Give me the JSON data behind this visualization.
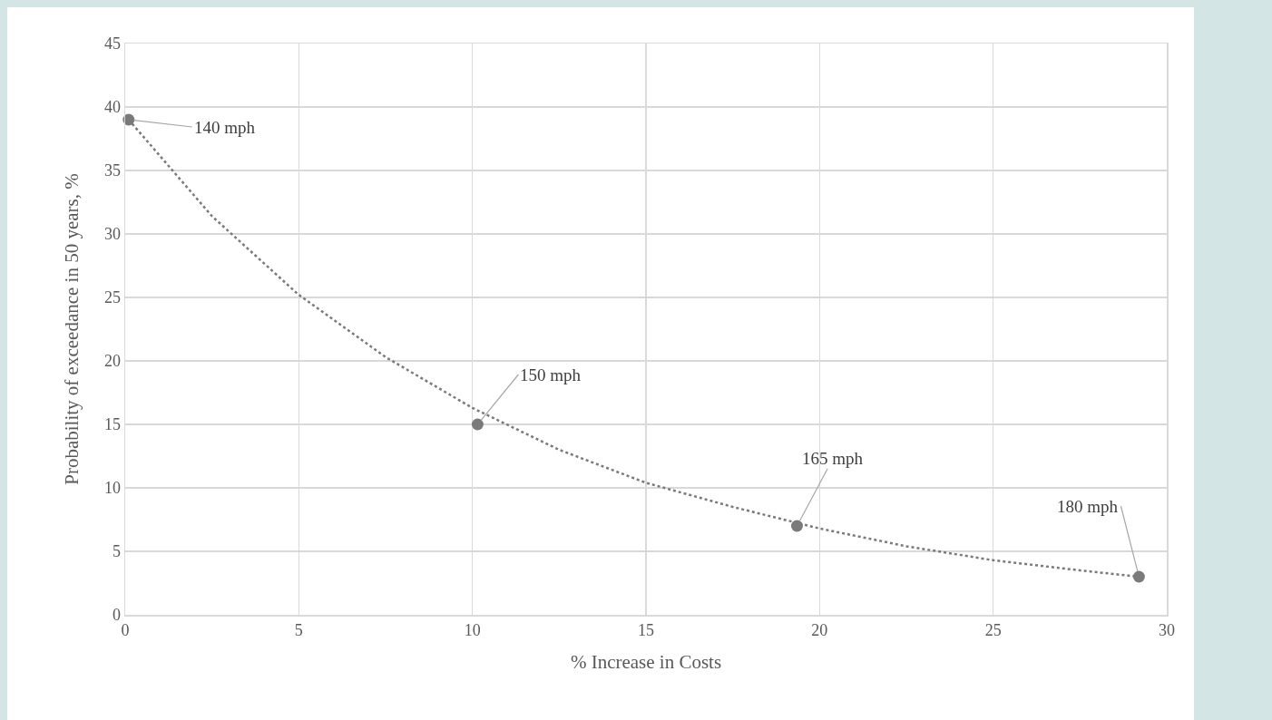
{
  "chart_data": {
    "type": "scatter",
    "xlabel": "% Increase in Costs",
    "ylabel": "Probability of exceedance in 50 years, %",
    "xlim": [
      0,
      30
    ],
    "xticks": [
      0,
      5,
      10,
      15,
      20,
      25,
      30
    ],
    "ylim": [
      0,
      45
    ],
    "yticks": [
      0,
      5,
      10,
      15,
      20,
      25,
      30,
      35,
      40,
      45
    ],
    "grid": true,
    "marker": "circle",
    "series": [
      {
        "color": "#7a7a7a",
        "x": [
          0.1,
          10.15,
          19.35,
          29.2
        ],
        "values": [
          39.0,
          15.0,
          7.0,
          3.0
        ]
      },
      {
        "type": "line",
        "line_style": "dotted",
        "marker": "none",
        "color": "#7a7a7a",
        "x": [
          0.1,
          2.5,
          5,
          7.5,
          10,
          12.5,
          15,
          17.5,
          20,
          22.5,
          25,
          27.5,
          29.2
        ],
        "values": [
          39.0,
          31.4,
          25.2,
          20.3,
          16.3,
          13.0,
          10.4,
          8.5,
          6.8,
          5.4,
          4.3,
          3.5,
          3.0
        ]
      }
    ],
    "annotations": [
      {
        "text": "140 mph",
        "x": 0.1,
        "y": 39.0
      },
      {
        "text": "150 mph",
        "x": 10.15,
        "y": 15.0
      },
      {
        "text": "165 mph",
        "x": 19.35,
        "y": 7.0
      },
      {
        "text": "180 mph",
        "x": 29.2,
        "y": 3.0
      }
    ]
  }
}
